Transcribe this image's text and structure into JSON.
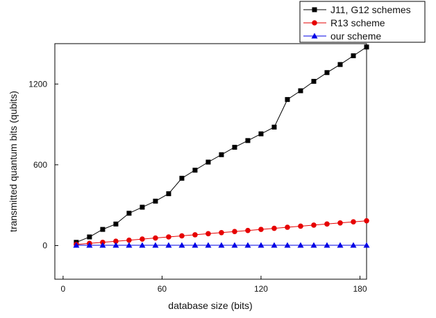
{
  "chart_data": {
    "type": "line",
    "title": "",
    "xlabel": "database size (bits)",
    "ylabel": "transmitted quantum bits (qubits)",
    "xlim": [
      -5,
      184
    ],
    "ylim": [
      -250,
      1500
    ],
    "xticks": [
      0,
      60,
      120,
      180
    ],
    "yticks": [
      0,
      600,
      1200
    ],
    "grid": false,
    "legend_position": "top-right",
    "x": [
      8,
      16,
      24,
      32,
      40,
      48,
      56,
      64,
      72,
      80,
      88,
      96,
      104,
      112,
      120,
      128,
      136,
      144,
      152,
      160,
      168,
      176,
      184
    ],
    "series": [
      {
        "name": "J11, G12 schemes",
        "color": "#000000",
        "marker": "square",
        "values": [
          24,
          64,
          120,
          160,
          240,
          285,
          330,
          385,
          500,
          560,
          620,
          675,
          730,
          780,
          830,
          880,
          1085,
          1150,
          1220,
          1285,
          1345,
          1410,
          1475
        ]
      },
      {
        "name": "R13 scheme",
        "color": "#e60000",
        "marker": "circle",
        "values": [
          8,
          16,
          24,
          32,
          40,
          48,
          56,
          64,
          72,
          80,
          88,
          96,
          104,
          112,
          120,
          128,
          136,
          144,
          152,
          160,
          168,
          176,
          184
        ]
      },
      {
        "name": "our scheme",
        "color": "#0000e6",
        "marker": "triangle",
        "values": [
          2,
          2,
          2,
          2,
          2,
          2,
          2,
          2,
          2,
          2,
          2,
          2,
          2,
          2,
          2,
          2,
          2,
          2,
          2,
          2,
          2,
          2,
          2
        ]
      }
    ]
  }
}
